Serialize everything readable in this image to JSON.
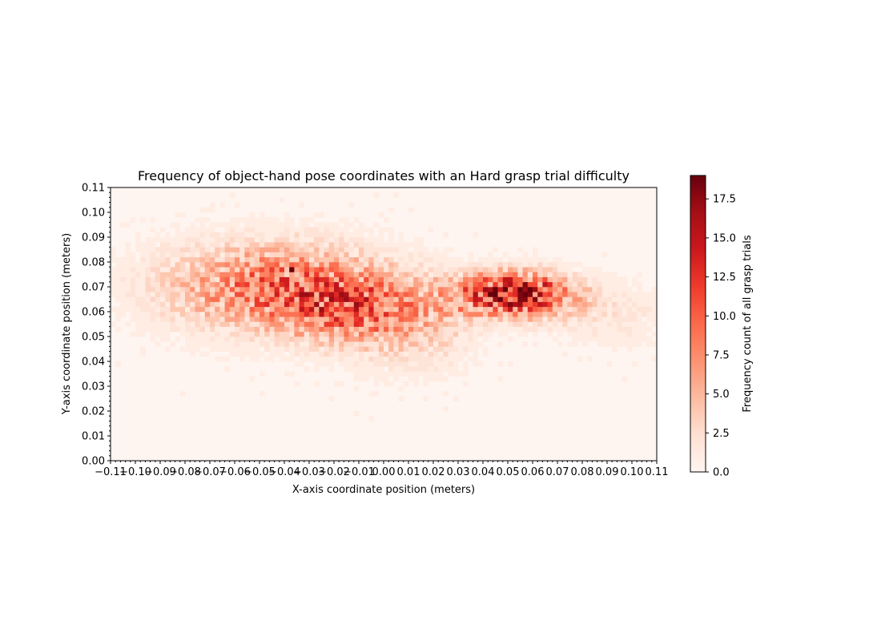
{
  "chart_data": {
    "type": "heatmap",
    "title": "Frequency of object-hand pose coordinates with an Hard grasp trial difficulty",
    "xlabel": "X-axis coordinate position (meters)",
    "ylabel": "Y-axis coordinate position (meters)",
    "colorbar_label": "Frequency count of all grasp trials",
    "colormap": "Reds",
    "xlim": [
      -0.11,
      0.11
    ],
    "ylim": [
      0.0,
      0.11
    ],
    "clim": [
      0.0,
      19.0
    ],
    "x_ticks": [
      "−0.11",
      "−0.10",
      "−0.09",
      "−0.08",
      "−0.07",
      "−0.06",
      "−0.05",
      "−0.04",
      "−0.03",
      "−0.02",
      "−0.01",
      "0.00",
      "0.01",
      "0.02",
      "0.03",
      "0.04",
      "0.05",
      "0.06",
      "0.07",
      "0.08",
      "0.09",
      "0.10",
      "0.11"
    ],
    "y_ticks": [
      "0.00",
      "0.01",
      "0.02",
      "0.03",
      "0.04",
      "0.05",
      "0.06",
      "0.07",
      "0.08",
      "0.09",
      "0.10",
      "0.11"
    ],
    "colorbar_ticks": [
      "0.0",
      "2.5",
      "5.0",
      "7.5",
      "10.0",
      "12.5",
      "15.0",
      "17.5"
    ],
    "grid": false,
    "x_bins": 110,
    "y_bins": 55,
    "clusters": [
      {
        "x_center": -0.045,
        "y_center": 0.07,
        "x_spread": 0.03,
        "y_spread": 0.012,
        "peak": 9
      },
      {
        "x_center": -0.015,
        "y_center": 0.062,
        "x_spread": 0.018,
        "y_spread": 0.01,
        "peak": 7
      },
      {
        "x_center": 0.012,
        "y_center": 0.055,
        "x_spread": 0.016,
        "y_spread": 0.012,
        "peak": 4
      },
      {
        "x_center": 0.052,
        "y_center": 0.067,
        "x_spread": 0.016,
        "y_spread": 0.006,
        "peak": 17
      },
      {
        "x_center": 0.09,
        "y_center": 0.058,
        "x_spread": 0.016,
        "y_spread": 0.008,
        "peak": 2
      }
    ],
    "peak_cells": [
      {
        "x": -0.037,
        "y": 0.0775,
        "value": 19
      },
      {
        "x": 0.055,
        "y": 0.0695,
        "value": 19
      },
      {
        "x": 0.057,
        "y": 0.0655,
        "value": 18
      },
      {
        "x": 0.051,
        "y": 0.0725,
        "value": 15
      },
      {
        "x": 0.065,
        "y": 0.0705,
        "value": 15
      }
    ]
  }
}
